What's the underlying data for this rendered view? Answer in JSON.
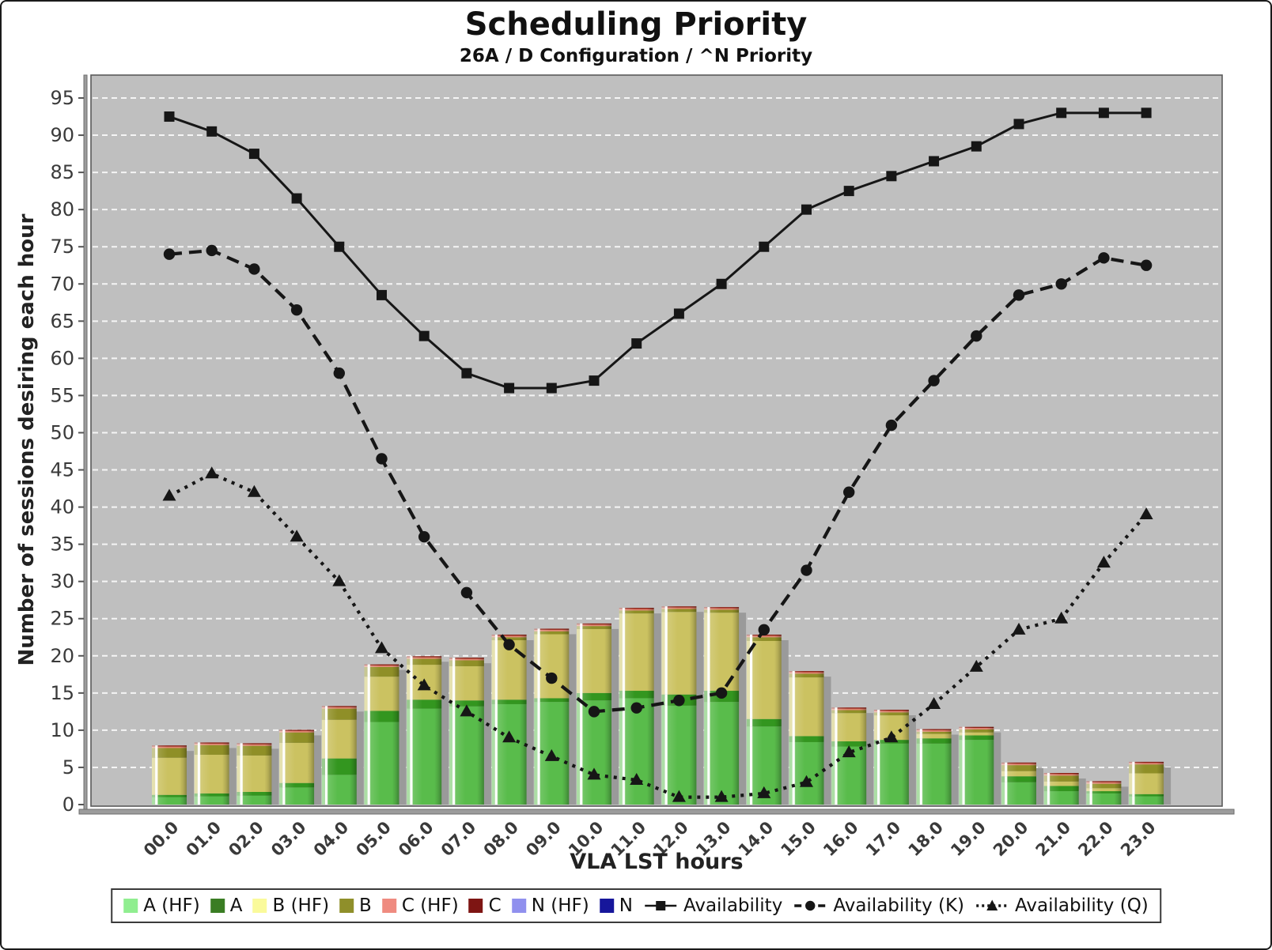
{
  "title": "Scheduling Priority",
  "subtitle": "26A / D Configuration / ^N Priority",
  "chart_data": {
    "type": "bar+line",
    "title": "Scheduling Priority",
    "subtitle": "26A / D Configuration / ^N Priority",
    "xlabel": "VLA LST hours",
    "ylabel": "Number of sessions desiring each hour",
    "ylim": [
      0,
      97.5
    ],
    "y_tick_step": 5,
    "y_ticks": [
      0,
      5,
      10,
      15,
      20,
      25,
      30,
      35,
      40,
      45,
      50,
      55,
      60,
      65,
      70,
      75,
      80,
      85,
      90,
      95
    ],
    "grid": "horizontal white dashed every 5",
    "legend_position": "bottom",
    "categories": [
      "00.0",
      "01.0",
      "02.0",
      "03.0",
      "04.0",
      "05.0",
      "06.0",
      "07.0",
      "08.0",
      "09.0",
      "10.0",
      "11.0",
      "12.0",
      "13.0",
      "14.0",
      "15.0",
      "16.0",
      "17.0",
      "18.0",
      "19.0",
      "20.0",
      "21.0",
      "22.0",
      "23.0"
    ],
    "bar_series": [
      {
        "name": "A (HF)",
        "legend_color": "#90EE90",
        "bar_color": "#59BC4B",
        "values": [
          1.0,
          1.1,
          1.2,
          2.3,
          4.0,
          11.1,
          12.9,
          13.2,
          13.5,
          13.8,
          14.0,
          14.3,
          13.3,
          13.8,
          10.5,
          8.4,
          7.8,
          8.2,
          8.2,
          8.7,
          3.0,
          1.8,
          1.5,
          1.1
        ]
      },
      {
        "name": "A",
        "legend_color": "#3A7D23",
        "bar_color": "#33961F",
        "values": [
          0.3,
          0.4,
          0.5,
          0.6,
          2.2,
          1.5,
          1.2,
          0.8,
          0.6,
          0.5,
          1.0,
          1.0,
          1.5,
          1.5,
          1.0,
          0.8,
          0.7,
          0.5,
          0.7,
          0.6,
          0.8,
          0.7,
          0.3,
          0.3
        ]
      },
      {
        "name": "B (HF)",
        "legend_color": "#FAFA9B",
        "bar_color": "#CBC261",
        "values": [
          5.0,
          5.2,
          4.9,
          5.4,
          5.2,
          4.6,
          4.7,
          4.6,
          8.0,
          8.6,
          8.6,
          10.4,
          11.1,
          10.5,
          10.5,
          7.9,
          3.8,
          3.3,
          0.6,
          0.4,
          0.7,
          0.6,
          0.4,
          2.8
        ]
      },
      {
        "name": "B",
        "legend_color": "#8F8F2A",
        "bar_color": "#8F8F27",
        "values": [
          1.3,
          1.3,
          1.3,
          1.4,
          1.5,
          1.3,
          0.8,
          0.8,
          0.4,
          0.4,
          0.4,
          0.4,
          0.4,
          0.4,
          0.5,
          0.5,
          0.4,
          0.4,
          0.3,
          0.4,
          0.8,
          0.8,
          0.6,
          1.2
        ]
      },
      {
        "name": "C (HF)",
        "legend_color": "#EF8B80",
        "bar_color": "#E2836F",
        "values": [
          0.2,
          0.2,
          0.2,
          0.2,
          0.2,
          0.2,
          0.2,
          0.2,
          0.2,
          0.2,
          0.2,
          0.2,
          0.2,
          0.2,
          0.2,
          0.2,
          0.2,
          0.2,
          0.2,
          0.2,
          0.2,
          0.2,
          0.2,
          0.2
        ]
      },
      {
        "name": "C",
        "legend_color": "#7E1513",
        "bar_color": "#8C1E12",
        "values": [
          0.15,
          0.15,
          0.15,
          0.15,
          0.15,
          0.15,
          0.15,
          0.15,
          0.15,
          0.15,
          0.15,
          0.15,
          0.15,
          0.15,
          0.15,
          0.15,
          0.15,
          0.15,
          0.15,
          0.15,
          0.15,
          0.15,
          0.15,
          0.15
        ]
      },
      {
        "name": "N (HF)",
        "legend_color": "#9090EE",
        "bar_color": "#8D8DE8",
        "values": [
          0,
          0,
          0,
          0,
          0,
          0,
          0,
          0,
          0,
          0,
          0,
          0,
          0,
          0,
          0,
          0,
          0,
          0,
          0,
          0,
          0,
          0,
          0,
          0
        ]
      },
      {
        "name": "N",
        "legend_color": "#16169B",
        "bar_color": "#1717A6",
        "values": [
          0,
          0,
          0,
          0,
          0,
          0,
          0,
          0,
          0,
          0,
          0,
          0,
          0,
          0,
          0,
          0,
          0,
          0,
          0,
          0,
          0,
          0,
          0,
          0
        ]
      }
    ],
    "line_series": [
      {
        "name": "Availability",
        "marker": "square",
        "dash": "solid",
        "values": [
          92.5,
          90.5,
          87.5,
          81.5,
          75,
          68.5,
          63,
          58,
          56,
          56,
          57,
          62,
          66,
          70,
          75,
          80,
          82.5,
          84.5,
          86.5,
          88.5,
          91.5,
          93,
          93,
          93
        ]
      },
      {
        "name": "Availability (K)",
        "marker": "circle",
        "dash": "dashed",
        "values": [
          74,
          74.5,
          72,
          66.5,
          58,
          46.5,
          36,
          28.5,
          21.5,
          17,
          12.5,
          13,
          14,
          15,
          23.5,
          31.5,
          42,
          51,
          57,
          63,
          68.5,
          70,
          73.5,
          72.5
        ]
      },
      {
        "name": "Availability (Q)",
        "marker": "triangle",
        "dash": "dotted",
        "values": [
          41.5,
          44.5,
          42,
          36,
          30,
          21,
          16,
          12.5,
          9,
          6.5,
          4,
          3.3,
          1,
          1,
          1.5,
          3,
          7,
          9,
          13.5,
          18.5,
          23.5,
          25,
          32.5,
          39
        ]
      }
    ],
    "colors": {
      "plot_background": "#BFBFBF",
      "gridline": "#FFFFFF",
      "bar_shadow": "#9A9A9A",
      "line_color": "#161616",
      "axis_line": "#9C9C9C",
      "axis_edge": "#6E6E6E",
      "tick_label": "#3A3A3A",
      "frame_border": "#1A1A1A"
    }
  }
}
